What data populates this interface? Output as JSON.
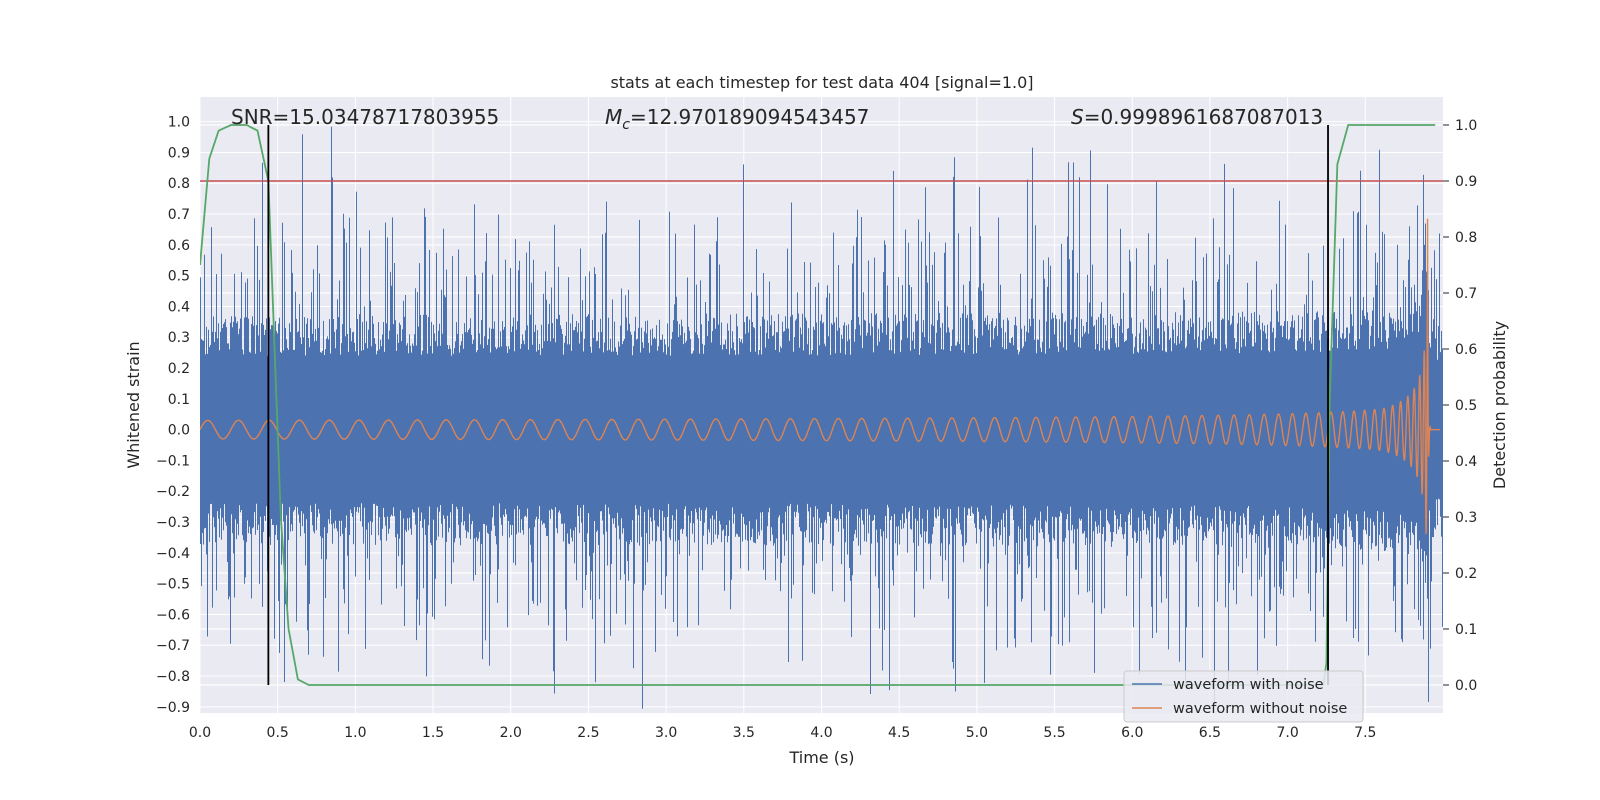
{
  "chart_data": {
    "type": "line",
    "title": "stats at each timestep for test data 404 [signal=1.0]",
    "xlabel": "Time (s)",
    "ylabel": "Whitened strain",
    "ylabel_right": "Detection probability",
    "xlim": [
      0.0,
      8.0
    ],
    "ylim": [
      -0.92,
      1.08
    ],
    "ylim_right": [
      -0.05,
      1.05
    ],
    "xticks": [
      0.0,
      0.5,
      1.0,
      1.5,
      2.0,
      2.5,
      3.0,
      3.5,
      4.0,
      4.5,
      5.0,
      5.5,
      6.0,
      6.5,
      7.0,
      7.5
    ],
    "xtick_labels": [
      "0.0",
      "0.5",
      "1.0",
      "1.5",
      "2.0",
      "2.5",
      "3.0",
      "3.5",
      "4.0",
      "4.5",
      "5.0",
      "5.5",
      "6.0",
      "6.5",
      "7.0",
      "7.5"
    ],
    "yticks": [
      -0.9,
      -0.8,
      -0.7,
      -0.6,
      -0.5,
      -0.4,
      -0.3,
      -0.2,
      -0.1,
      0.0,
      0.1,
      0.2,
      0.3,
      0.4,
      0.5,
      0.6,
      0.7,
      0.8,
      0.9,
      1.0
    ],
    "ytick_labels": [
      "−0.9",
      "−0.8",
      "−0.7",
      "−0.6",
      "−0.5",
      "−0.4",
      "−0.3",
      "−0.2",
      "−0.1",
      "0.0",
      "0.1",
      "0.2",
      "0.3",
      "0.4",
      "0.5",
      "0.6",
      "0.7",
      "0.8",
      "0.9",
      "1.0"
    ],
    "yticks_right": [
      0.0,
      0.1,
      0.2,
      0.3,
      0.4,
      0.5,
      0.6,
      0.7,
      0.8,
      0.9,
      1.0
    ],
    "ytick_labels_right": [
      "0.0",
      "0.1",
      "0.2",
      "0.3",
      "0.4",
      "0.5",
      "0.6",
      "0.7",
      "0.8",
      "0.9",
      "1.0"
    ],
    "grid": true,
    "legend_position": "bottom-right",
    "annotations": {
      "snr": "SNR=15.03478717803955",
      "mc_symbol": "M",
      "mc_sub": "c",
      "mc_value": "=12.970189094543457",
      "s_symbol": "S",
      "s_value": "=0.9998961687087013"
    },
    "series": [
      {
        "name": "waveform with noise",
        "color": "#4c72b0",
        "duration": 8.0,
        "noise_band": 0.36,
        "peak_amplitude": 1.0
      },
      {
        "name": "waveform without noise",
        "color": "#dd8452",
        "duration": 7.98,
        "amplitude_start": 0.03,
        "peak_amplitude": 0.78,
        "merger_time": 7.9
      }
    ],
    "detection_probability": {
      "color": "#55a868",
      "t": [
        0.0,
        0.06,
        0.12,
        0.2,
        0.3,
        0.37,
        0.44,
        0.52,
        0.57,
        0.63,
        0.7,
        1.0,
        7.23,
        7.25,
        7.27,
        7.32,
        7.39,
        7.95
      ],
      "p": [
        0.75,
        0.94,
        0.99,
        1.0,
        1.0,
        0.99,
        0.9,
        0.3,
        0.1,
        0.01,
        0.0,
        0.0,
        0.0,
        0.04,
        0.5,
        0.93,
        1.0,
        1.0
      ]
    },
    "threshold": {
      "value": 0.9,
      "color": "#c44e52"
    },
    "event_markers": [
      0.44,
      7.26
    ]
  }
}
